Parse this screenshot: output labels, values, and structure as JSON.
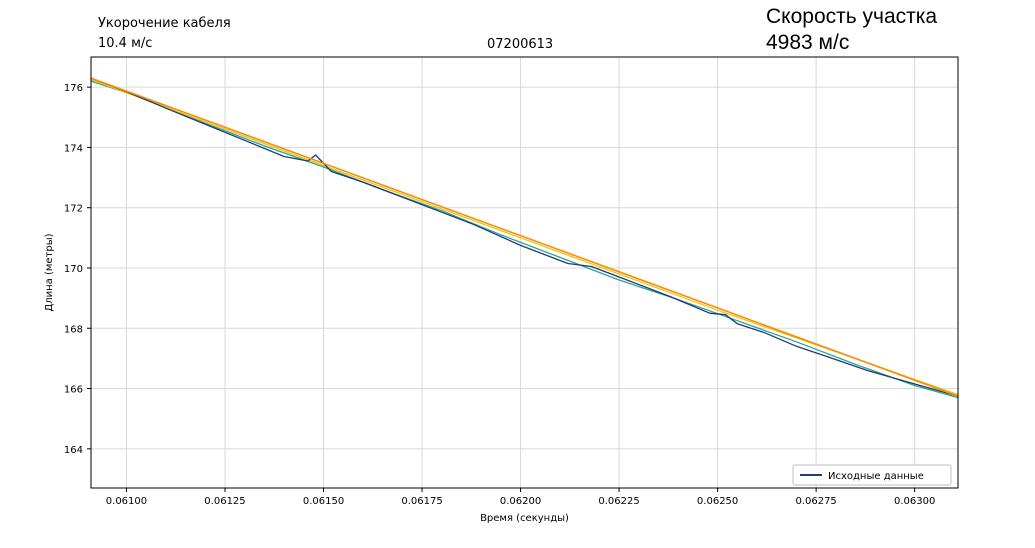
{
  "header": {
    "shortening_label": "Укорочение кабеля",
    "shortening_value": "10.4 м/с",
    "id_code": "07200613",
    "speed_label": "Скорость участка",
    "speed_value": "4983 м/с"
  },
  "chart_data": {
    "type": "line",
    "xlabel": "Время (секунды)",
    "ylabel": "Длина (метры)",
    "xlim": [
      0.06091,
      0.06311
    ],
    "ylim": [
      162.7,
      177.0
    ],
    "x_ticks": [
      "0.06100",
      "0.06125",
      "0.06150",
      "0.06175",
      "0.06200",
      "0.06225",
      "0.06250",
      "0.06275",
      "0.06300"
    ],
    "x_tick_values": [
      0.061,
      0.06125,
      0.0615,
      0.06175,
      0.062,
      0.06225,
      0.0625,
      0.06275,
      0.063
    ],
    "y_ticks": [
      "164",
      "166",
      "168",
      "170",
      "172",
      "174",
      "176"
    ],
    "y_tick_values": [
      164,
      166,
      168,
      170,
      172,
      174,
      176
    ],
    "grid": true,
    "legend_position": "bottom-right",
    "series": [
      {
        "name": "Исходные данные",
        "color": "#1f3b73",
        "x": [
          0.06091,
          0.061,
          0.0611,
          0.06125,
          0.0614,
          0.06146,
          0.06148,
          0.06152,
          0.0616,
          0.06168,
          0.06175,
          0.0618,
          0.06188,
          0.062,
          0.06212,
          0.06218,
          0.06225,
          0.06238,
          0.06248,
          0.06252,
          0.06255,
          0.06262,
          0.0627,
          0.06278,
          0.06288,
          0.063,
          0.06311
        ],
        "y": [
          176.3,
          175.85,
          175.3,
          174.5,
          173.7,
          173.55,
          173.75,
          173.2,
          172.85,
          172.45,
          172.1,
          171.85,
          171.45,
          170.75,
          170.15,
          170.05,
          169.7,
          169.05,
          168.5,
          168.45,
          168.15,
          167.85,
          167.4,
          167.05,
          166.6,
          166.15,
          165.75
        ]
      },
      {
        "color": "#2aa39a",
        "x": [
          0.06091,
          0.06105,
          0.0612,
          0.06135,
          0.0615,
          0.06165,
          0.0618,
          0.06195,
          0.0621,
          0.06225,
          0.0624,
          0.06255,
          0.0627,
          0.06285,
          0.063,
          0.06311
        ],
        "y": [
          176.2,
          175.6,
          174.8,
          174.05,
          173.35,
          172.6,
          171.9,
          171.1,
          170.35,
          169.6,
          168.95,
          168.25,
          167.55,
          166.8,
          166.1,
          165.7
        ]
      },
      {
        "color": "#ff8c00",
        "x": [
          0.06091,
          0.06311
        ],
        "y": [
          176.3,
          165.75
        ]
      },
      {
        "color": "#e6c619",
        "x": [
          0.06091,
          0.0615,
          0.062,
          0.0625,
          0.06311
        ],
        "y": [
          176.25,
          173.4,
          171.0,
          168.6,
          165.8
        ]
      }
    ]
  }
}
